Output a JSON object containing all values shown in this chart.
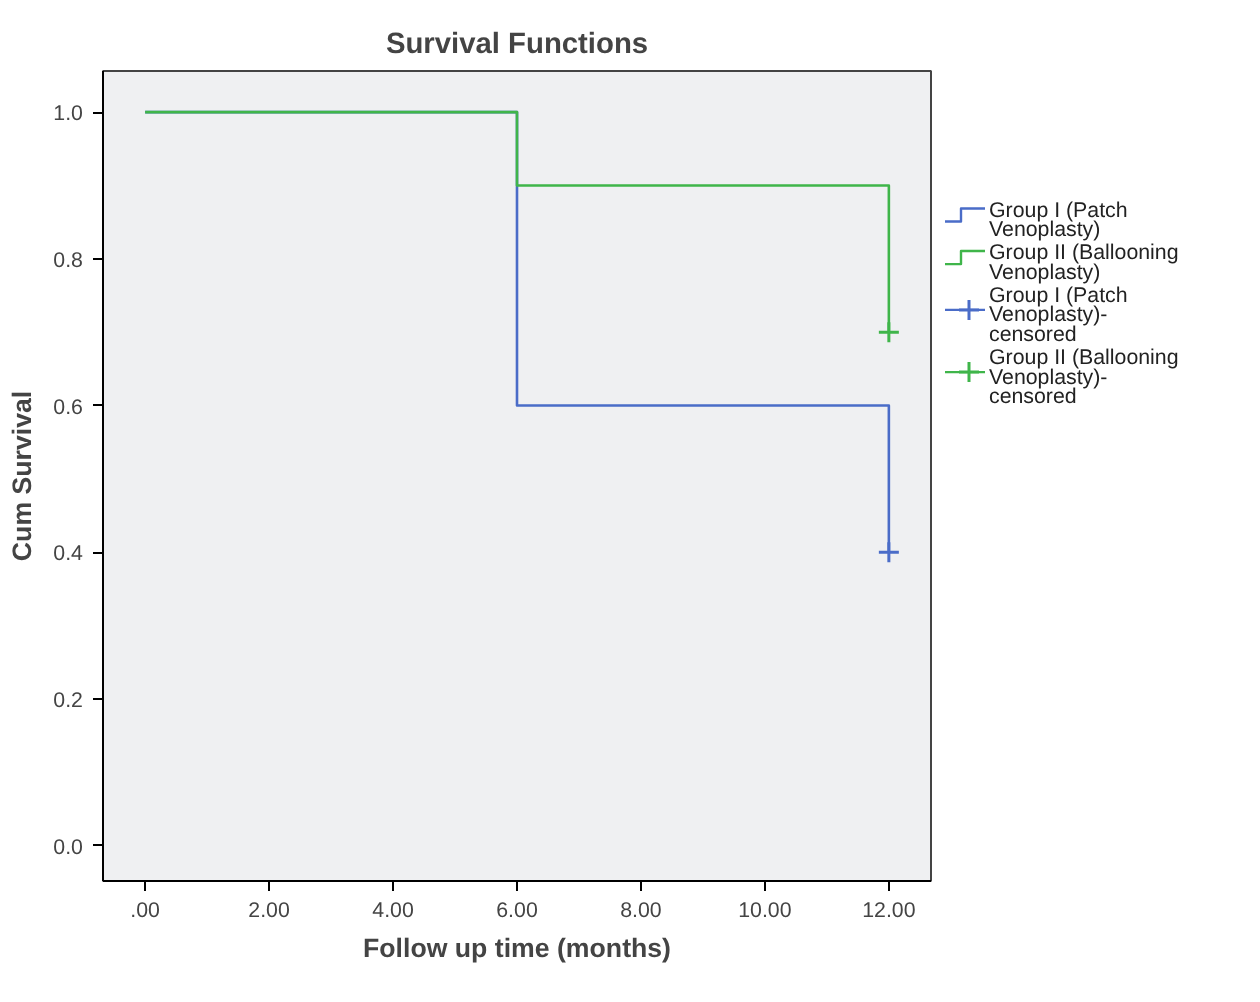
{
  "chart_data": {
    "type": "step",
    "title": "Survival Functions",
    "xlabel": "Follow up time (months)",
    "ylabel": "Cum Survival",
    "xlim": [
      -0.68,
      12.68
    ],
    "ylim": [
      -0.048,
      1.056
    ],
    "xticks": [
      {
        "value": 0,
        "label": ".00"
      },
      {
        "value": 2,
        "label": "2.00"
      },
      {
        "value": 4,
        "label": "4.00"
      },
      {
        "value": 6,
        "label": "6.00"
      },
      {
        "value": 8,
        "label": "8.00"
      },
      {
        "value": 10,
        "label": "10.00"
      },
      {
        "value": 12,
        "label": "12.00"
      }
    ],
    "yticks": [
      {
        "value": 0,
        "label": "0.0"
      },
      {
        "value": 0.2,
        "label": "0.2"
      },
      {
        "value": 0.4,
        "label": "0.4"
      },
      {
        "value": 0.6,
        "label": "0.6"
      },
      {
        "value": 0.8,
        "label": "0.8"
      },
      {
        "value": 1,
        "label": "1.0"
      }
    ],
    "grid": false,
    "legend": "right",
    "series": [
      {
        "name": "Group I (Patch Venoplasty)",
        "color": "#4a6cc8",
        "x": [
          0,
          6,
          12
        ],
        "values": [
          1,
          0.6,
          0.4
        ]
      },
      {
        "name": "Group II (Ballooning Venoplasty)",
        "color": "#3fb54a",
        "x": [
          0,
          6,
          12
        ],
        "values": [
          1,
          0.9,
          0.7
        ]
      },
      {
        "name": "Group I (Patch Venoplasty)-censored",
        "color": "#4a6cc8",
        "type": "scatter",
        "marker": "cross",
        "x": [
          12
        ],
        "values": [
          0.4
        ]
      },
      {
        "name": "Group II (Ballooning Venoplasty)-censored",
        "color": "#3fb54a",
        "type": "scatter",
        "marker": "cross",
        "x": [
          12
        ],
        "values": [
          0.7
        ]
      }
    ]
  }
}
